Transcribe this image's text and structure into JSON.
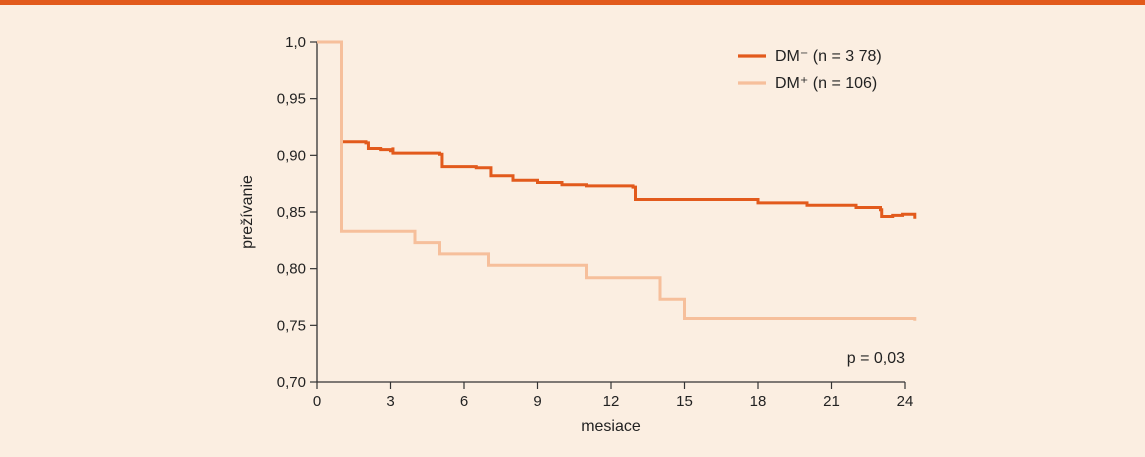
{
  "chart_data": {
    "type": "line",
    "xlabel": "mesiace",
    "ylabel": "prežívanie",
    "xlim": [
      0,
      24
    ],
    "ylim": [
      0.7,
      1.0
    ],
    "x_ticks": [
      0,
      3,
      6,
      9,
      12,
      15,
      18,
      21,
      24
    ],
    "x_tick_labels": [
      "0",
      "3",
      "6",
      "9",
      "12",
      "15",
      "18",
      "21",
      "24"
    ],
    "y_ticks": [
      0.7,
      0.75,
      0.8,
      0.85,
      0.9,
      0.95,
      1.0
    ],
    "y_tick_labels": [
      "0,70",
      "0,75",
      "0,80",
      "0,85",
      "0,90",
      "0,95",
      "1,0"
    ],
    "grid": false,
    "legend_position": "top-right",
    "annotation": "p = 0,03",
    "series": [
      {
        "name": "DM⁻  (n = 3 78)",
        "color": "#e25a1c",
        "step": true,
        "points": [
          [
            0,
            1.0
          ],
          [
            1.0,
            1.0
          ],
          [
            1.0,
            0.912
          ],
          [
            2.0,
            0.911
          ],
          [
            2.1,
            0.906
          ],
          [
            2.6,
            0.905
          ],
          [
            3.0,
            0.904
          ],
          [
            3.1,
            0.907
          ],
          [
            3.1,
            0.902
          ],
          [
            5.0,
            0.901
          ],
          [
            5.1,
            0.89
          ],
          [
            6.5,
            0.889
          ],
          [
            6.9,
            0.889
          ],
          [
            7.1,
            0.882
          ],
          [
            7.5,
            0.882
          ],
          [
            7.8,
            0.882
          ],
          [
            8.0,
            0.878
          ],
          [
            9.0,
            0.876
          ],
          [
            10.0,
            0.874
          ],
          [
            11.0,
            0.873
          ],
          [
            12.9,
            0.872
          ],
          [
            13.0,
            0.861
          ],
          [
            15.0,
            0.861
          ],
          [
            16.0,
            0.861
          ],
          [
            18.0,
            0.858
          ],
          [
            20.0,
            0.856
          ],
          [
            22.0,
            0.854
          ],
          [
            23.0,
            0.852
          ],
          [
            23.05,
            0.846
          ],
          [
            23.5,
            0.847
          ],
          [
            23.9,
            0.848
          ],
          [
            24.4,
            0.844
          ]
        ]
      },
      {
        "name": "DM⁺  (n = 106)",
        "color": "#f6bf9b",
        "step": true,
        "points": [
          [
            0,
            1.0
          ],
          [
            1.0,
            1.0
          ],
          [
            1.0,
            0.833
          ],
          [
            4.0,
            0.833
          ],
          [
            4.0,
            0.823
          ],
          [
            5.0,
            0.823
          ],
          [
            5.0,
            0.813
          ],
          [
            7.0,
            0.813
          ],
          [
            7.0,
            0.803
          ],
          [
            11.0,
            0.803
          ],
          [
            11.0,
            0.792
          ],
          [
            14.0,
            0.792
          ],
          [
            14.0,
            0.773
          ],
          [
            15.0,
            0.773
          ],
          [
            15.0,
            0.756
          ],
          [
            24.4,
            0.754
          ]
        ]
      }
    ]
  }
}
